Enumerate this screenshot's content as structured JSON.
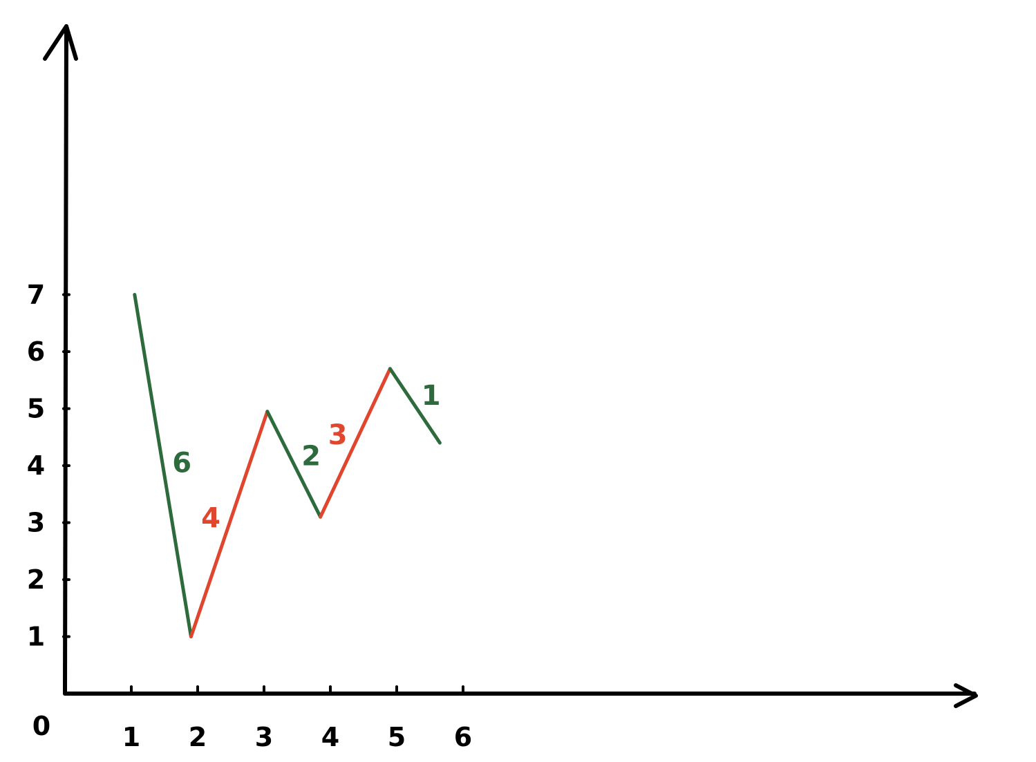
{
  "chart_data": {
    "type": "line",
    "title": "",
    "xlabel": "",
    "ylabel": "",
    "origin_label": "0",
    "x_ticks": [
      "1",
      "2",
      "3",
      "4",
      "5",
      "6"
    ],
    "y_ticks": [
      "1",
      "2",
      "3",
      "4",
      "5",
      "6",
      "7"
    ],
    "xlim": [
      0,
      13.5
    ],
    "ylim": [
      0,
      11.8
    ],
    "grid": false,
    "points": [
      {
        "x": 1.05,
        "y": 7.0
      },
      {
        "x": 1.9,
        "y": 1.0
      },
      {
        "x": 3.05,
        "y": 4.95
      },
      {
        "x": 3.85,
        "y": 3.1
      },
      {
        "x": 4.9,
        "y": 5.7
      },
      {
        "x": 5.65,
        "y": 4.4
      }
    ],
    "segments": [
      {
        "label": "6",
        "color": "#2e6b3c"
      },
      {
        "label": "4",
        "color": "#e0452e"
      },
      {
        "label": "2",
        "color": "#2e6b3c"
      },
      {
        "label": "3",
        "color": "#e0452e"
      },
      {
        "label": "1",
        "color": "#2e6b3c"
      }
    ],
    "colors": {
      "down": "#2e6b3c",
      "up": "#e0452e",
      "axis": "#000000"
    }
  }
}
